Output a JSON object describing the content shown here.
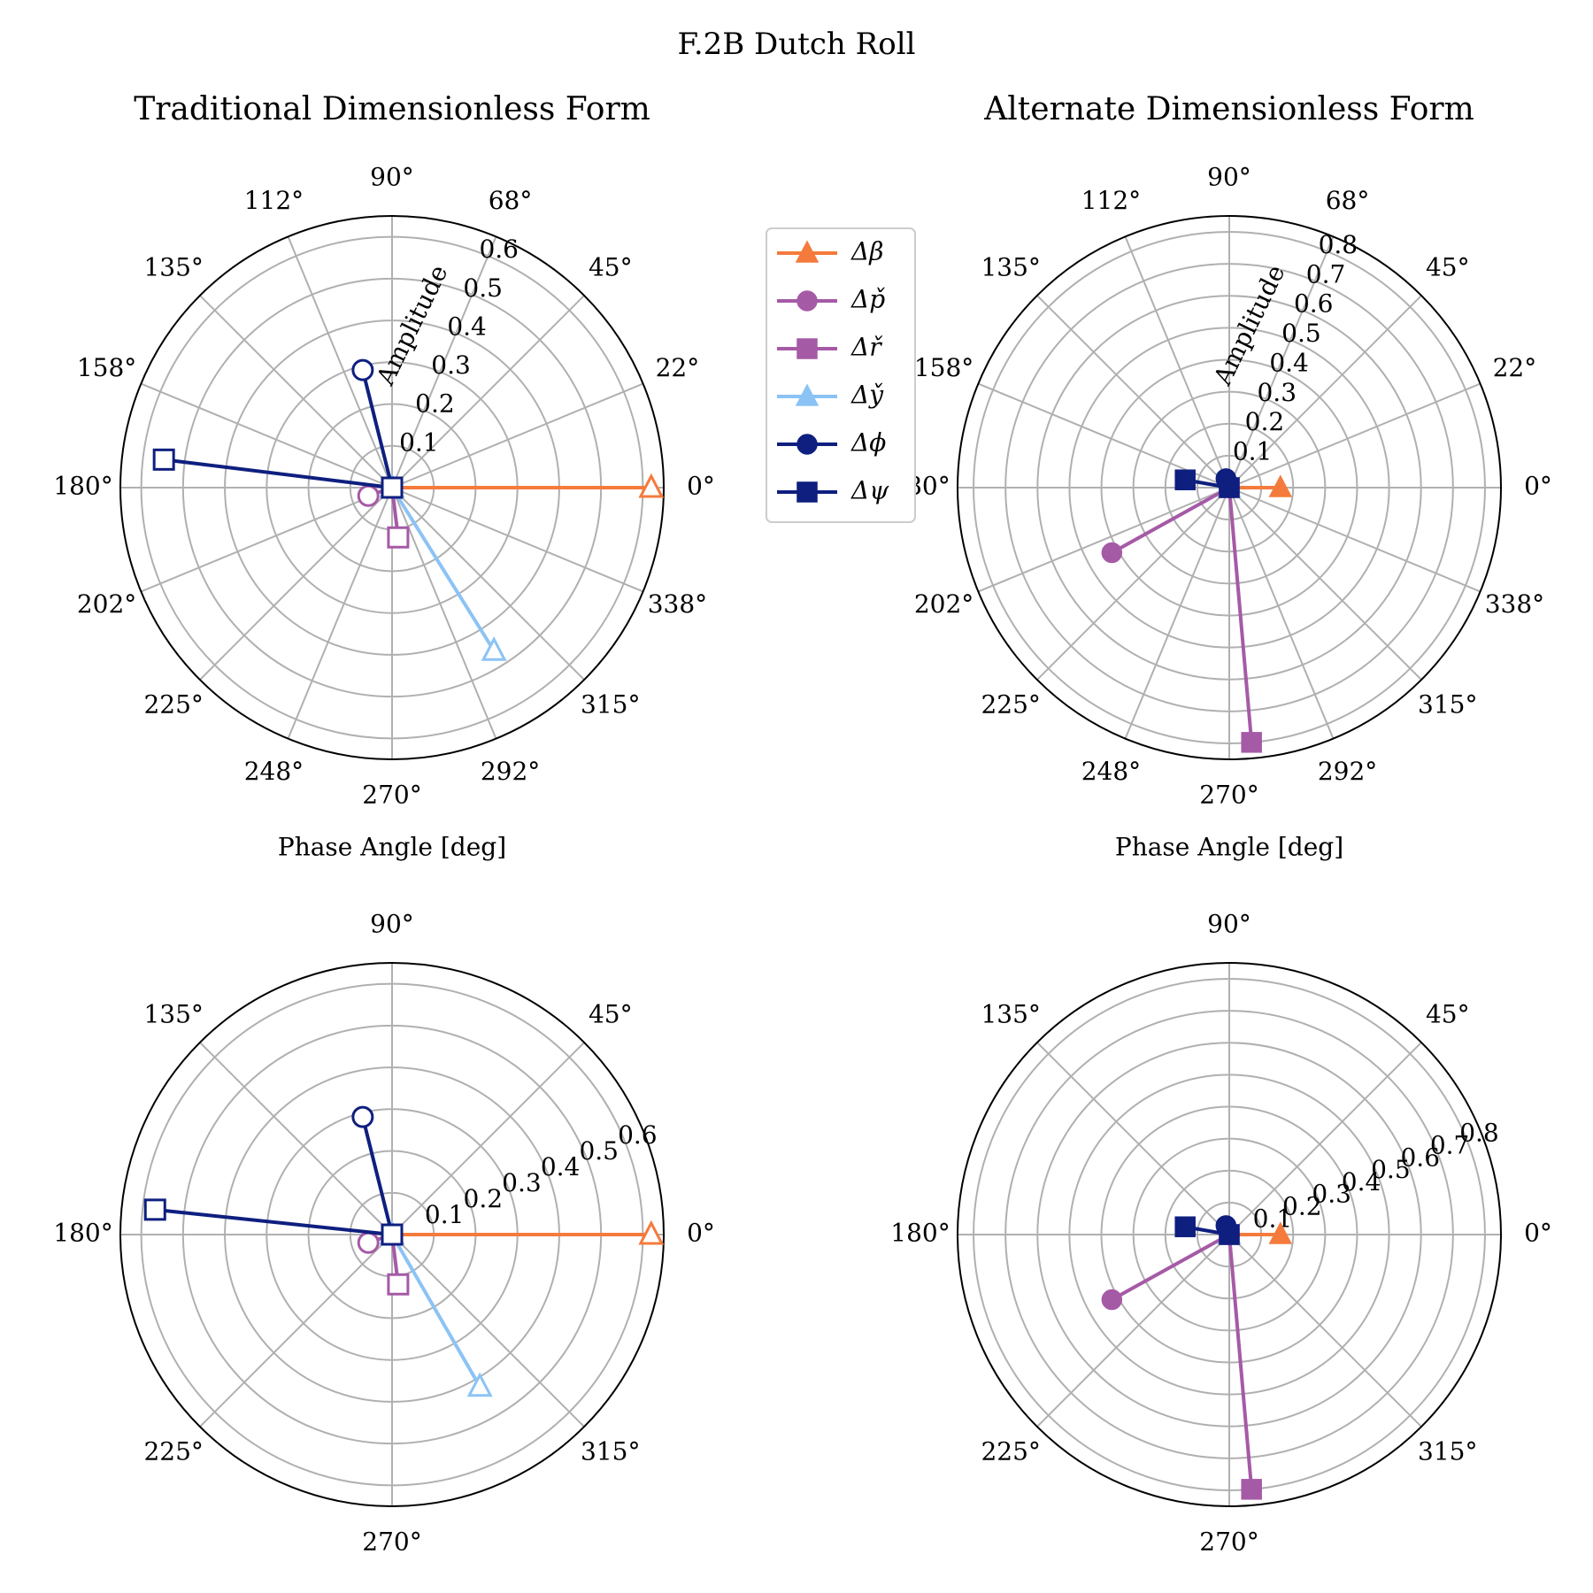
{
  "suptitle": "F.2B Dutch Roll",
  "legend": {
    "placement": "upper-center between top panels",
    "entries": [
      {
        "label": "Δβ",
        "marker": "triangle",
        "color": "#F47B3C"
      },
      {
        "label": "Δp̌",
        "marker": "circle",
        "color": "#A55AA6"
      },
      {
        "label": "Δř",
        "marker": "square",
        "color": "#A55AA6"
      },
      {
        "label": "Δy̌",
        "marker": "triangle",
        "color": "#8BC3F5"
      },
      {
        "label": "Δϕ",
        "marker": "circle",
        "color": "#0E1F7F"
      },
      {
        "label": "Δψ",
        "marker": "square",
        "color": "#0E1F7F"
      }
    ]
  },
  "chart_data": [
    {
      "type": "polar",
      "title": "Traditional Dimensionless Form",
      "xlabel": "Phase Angle [deg]",
      "rlabel": "Amplitude",
      "rlim": [
        0,
        0.65
      ],
      "rticks": [
        "0.1",
        "0.2",
        "0.3",
        "0.4",
        "0.5",
        "0.6"
      ],
      "rtick_angle_deg": 67.5,
      "angle_ticks": [
        "0°",
        "22°",
        "45°",
        "68°",
        "90°",
        "112°",
        "135°",
        "158°",
        "180°",
        "202°",
        "225°",
        "248°",
        "270°",
        "292°",
        "315°",
        "338°"
      ],
      "marker_fill": "hollow",
      "grid": true,
      "series": [
        {
          "name": "Δβ",
          "color": "#F47B3C",
          "marker": "triangle",
          "amplitude": 0.62,
          "phase_deg": 0
        },
        {
          "name": "Δp̌",
          "color": "#A55AA6",
          "marker": "circle",
          "amplitude": 0.06,
          "phase_deg": 199
        },
        {
          "name": "Δř",
          "color": "#A55AA6",
          "marker": "square",
          "amplitude": 0.12,
          "phase_deg": 277
        },
        {
          "name": "Δy̌",
          "color": "#8BC3F5",
          "marker": "triangle",
          "amplitude": 0.46,
          "phase_deg": 302
        },
        {
          "name": "Δϕ",
          "color": "#0E1F7F",
          "marker": "circle",
          "amplitude": 0.29,
          "phase_deg": 104
        },
        {
          "name": "Δψ",
          "color": "#0E1F7F",
          "marker": "square",
          "amplitude": 0.55,
          "phase_deg": 173
        }
      ]
    },
    {
      "type": "polar",
      "title": "Alternate Dimensionless Form",
      "xlabel": "Phase Angle [deg]",
      "rlabel": "Amplitude",
      "rlim": [
        0,
        0.85
      ],
      "rticks": [
        "0.1",
        "0.2",
        "0.3",
        "0.4",
        "0.5",
        "0.6",
        "0.7",
        "0.8"
      ],
      "rtick_angle_deg": 67.5,
      "angle_ticks": [
        "0°",
        "22°",
        "45°",
        "68°",
        "90°",
        "112°",
        "135°",
        "158°",
        "180°",
        "202°",
        "225°",
        "248°",
        "270°",
        "292°",
        "315°",
        "338°"
      ],
      "marker_fill": "filled",
      "grid": true,
      "series": [
        {
          "name": "Δβ",
          "color": "#F47B3C",
          "marker": "triangle",
          "amplitude": 0.16,
          "phase_deg": 0
        },
        {
          "name": "Δp̌",
          "color": "#A55AA6",
          "marker": "circle",
          "amplitude": 0.42,
          "phase_deg": 209
        },
        {
          "name": "Δř",
          "color": "#A55AA6",
          "marker": "square",
          "amplitude": 0.8,
          "phase_deg": 275
        },
        {
          "name": "Δy̌",
          "color": "#8BC3F5",
          "marker": "triangle",
          "amplitude": 0.0,
          "phase_deg": 0
        },
        {
          "name": "Δϕ",
          "color": "#0E1F7F",
          "marker": "circle",
          "amplitude": 0.03,
          "phase_deg": 110
        },
        {
          "name": "Δψ",
          "color": "#0E1F7F",
          "marker": "square",
          "amplitude": 0.14,
          "phase_deg": 170
        }
      ]
    },
    {
      "type": "polar",
      "title": "",
      "xlabel": "",
      "rlabel": "",
      "rlim": [
        0,
        0.65
      ],
      "rticks": [
        "0.1",
        "0.2",
        "0.3",
        "0.4",
        "0.5",
        "0.6"
      ],
      "rtick_angle_deg": 22.5,
      "angle_ticks": [
        "0°",
        "45°",
        "90°",
        "135°",
        "180°",
        "225°",
        "270°",
        "315°"
      ],
      "marker_fill": "hollow",
      "grid": true,
      "series": [
        {
          "name": "Δβ",
          "color": "#F47B3C",
          "marker": "triangle",
          "amplitude": 0.62,
          "phase_deg": 0
        },
        {
          "name": "Δp̌",
          "color": "#A55AA6",
          "marker": "circle",
          "amplitude": 0.06,
          "phase_deg": 199
        },
        {
          "name": "Δř",
          "color": "#A55AA6",
          "marker": "square",
          "amplitude": 0.12,
          "phase_deg": 277
        },
        {
          "name": "Δy̌",
          "color": "#8BC3F5",
          "marker": "triangle",
          "amplitude": 0.42,
          "phase_deg": 300
        },
        {
          "name": "Δϕ",
          "color": "#0E1F7F",
          "marker": "circle",
          "amplitude": 0.29,
          "phase_deg": 104
        },
        {
          "name": "Δψ",
          "color": "#0E1F7F",
          "marker": "square",
          "amplitude": 0.57,
          "phase_deg": 174
        }
      ]
    },
    {
      "type": "polar",
      "title": "",
      "xlabel": "",
      "rlabel": "",
      "rlim": [
        0,
        0.85
      ],
      "rticks": [
        "0.1",
        "0.2",
        "0.3",
        "0.4",
        "0.5",
        "0.6",
        "0.7",
        "0.8"
      ],
      "rtick_angle_deg": 22.5,
      "angle_ticks": [
        "0°",
        "45°",
        "90°",
        "135°",
        "180°",
        "225°",
        "270°",
        "315°"
      ],
      "marker_fill": "filled",
      "grid": true,
      "series": [
        {
          "name": "Δβ",
          "color": "#F47B3C",
          "marker": "triangle",
          "amplitude": 0.16,
          "phase_deg": 0
        },
        {
          "name": "Δp̌",
          "color": "#A55AA6",
          "marker": "circle",
          "amplitude": 0.42,
          "phase_deg": 209
        },
        {
          "name": "Δř",
          "color": "#A55AA6",
          "marker": "square",
          "amplitude": 0.8,
          "phase_deg": 275
        },
        {
          "name": "Δy̌",
          "color": "#8BC3F5",
          "marker": "triangle",
          "amplitude": 0.0,
          "phase_deg": 0
        },
        {
          "name": "Δϕ",
          "color": "#0E1F7F",
          "marker": "circle",
          "amplitude": 0.03,
          "phase_deg": 110
        },
        {
          "name": "Δψ",
          "color": "#0E1F7F",
          "marker": "square",
          "amplitude": 0.14,
          "phase_deg": 170
        }
      ]
    }
  ]
}
